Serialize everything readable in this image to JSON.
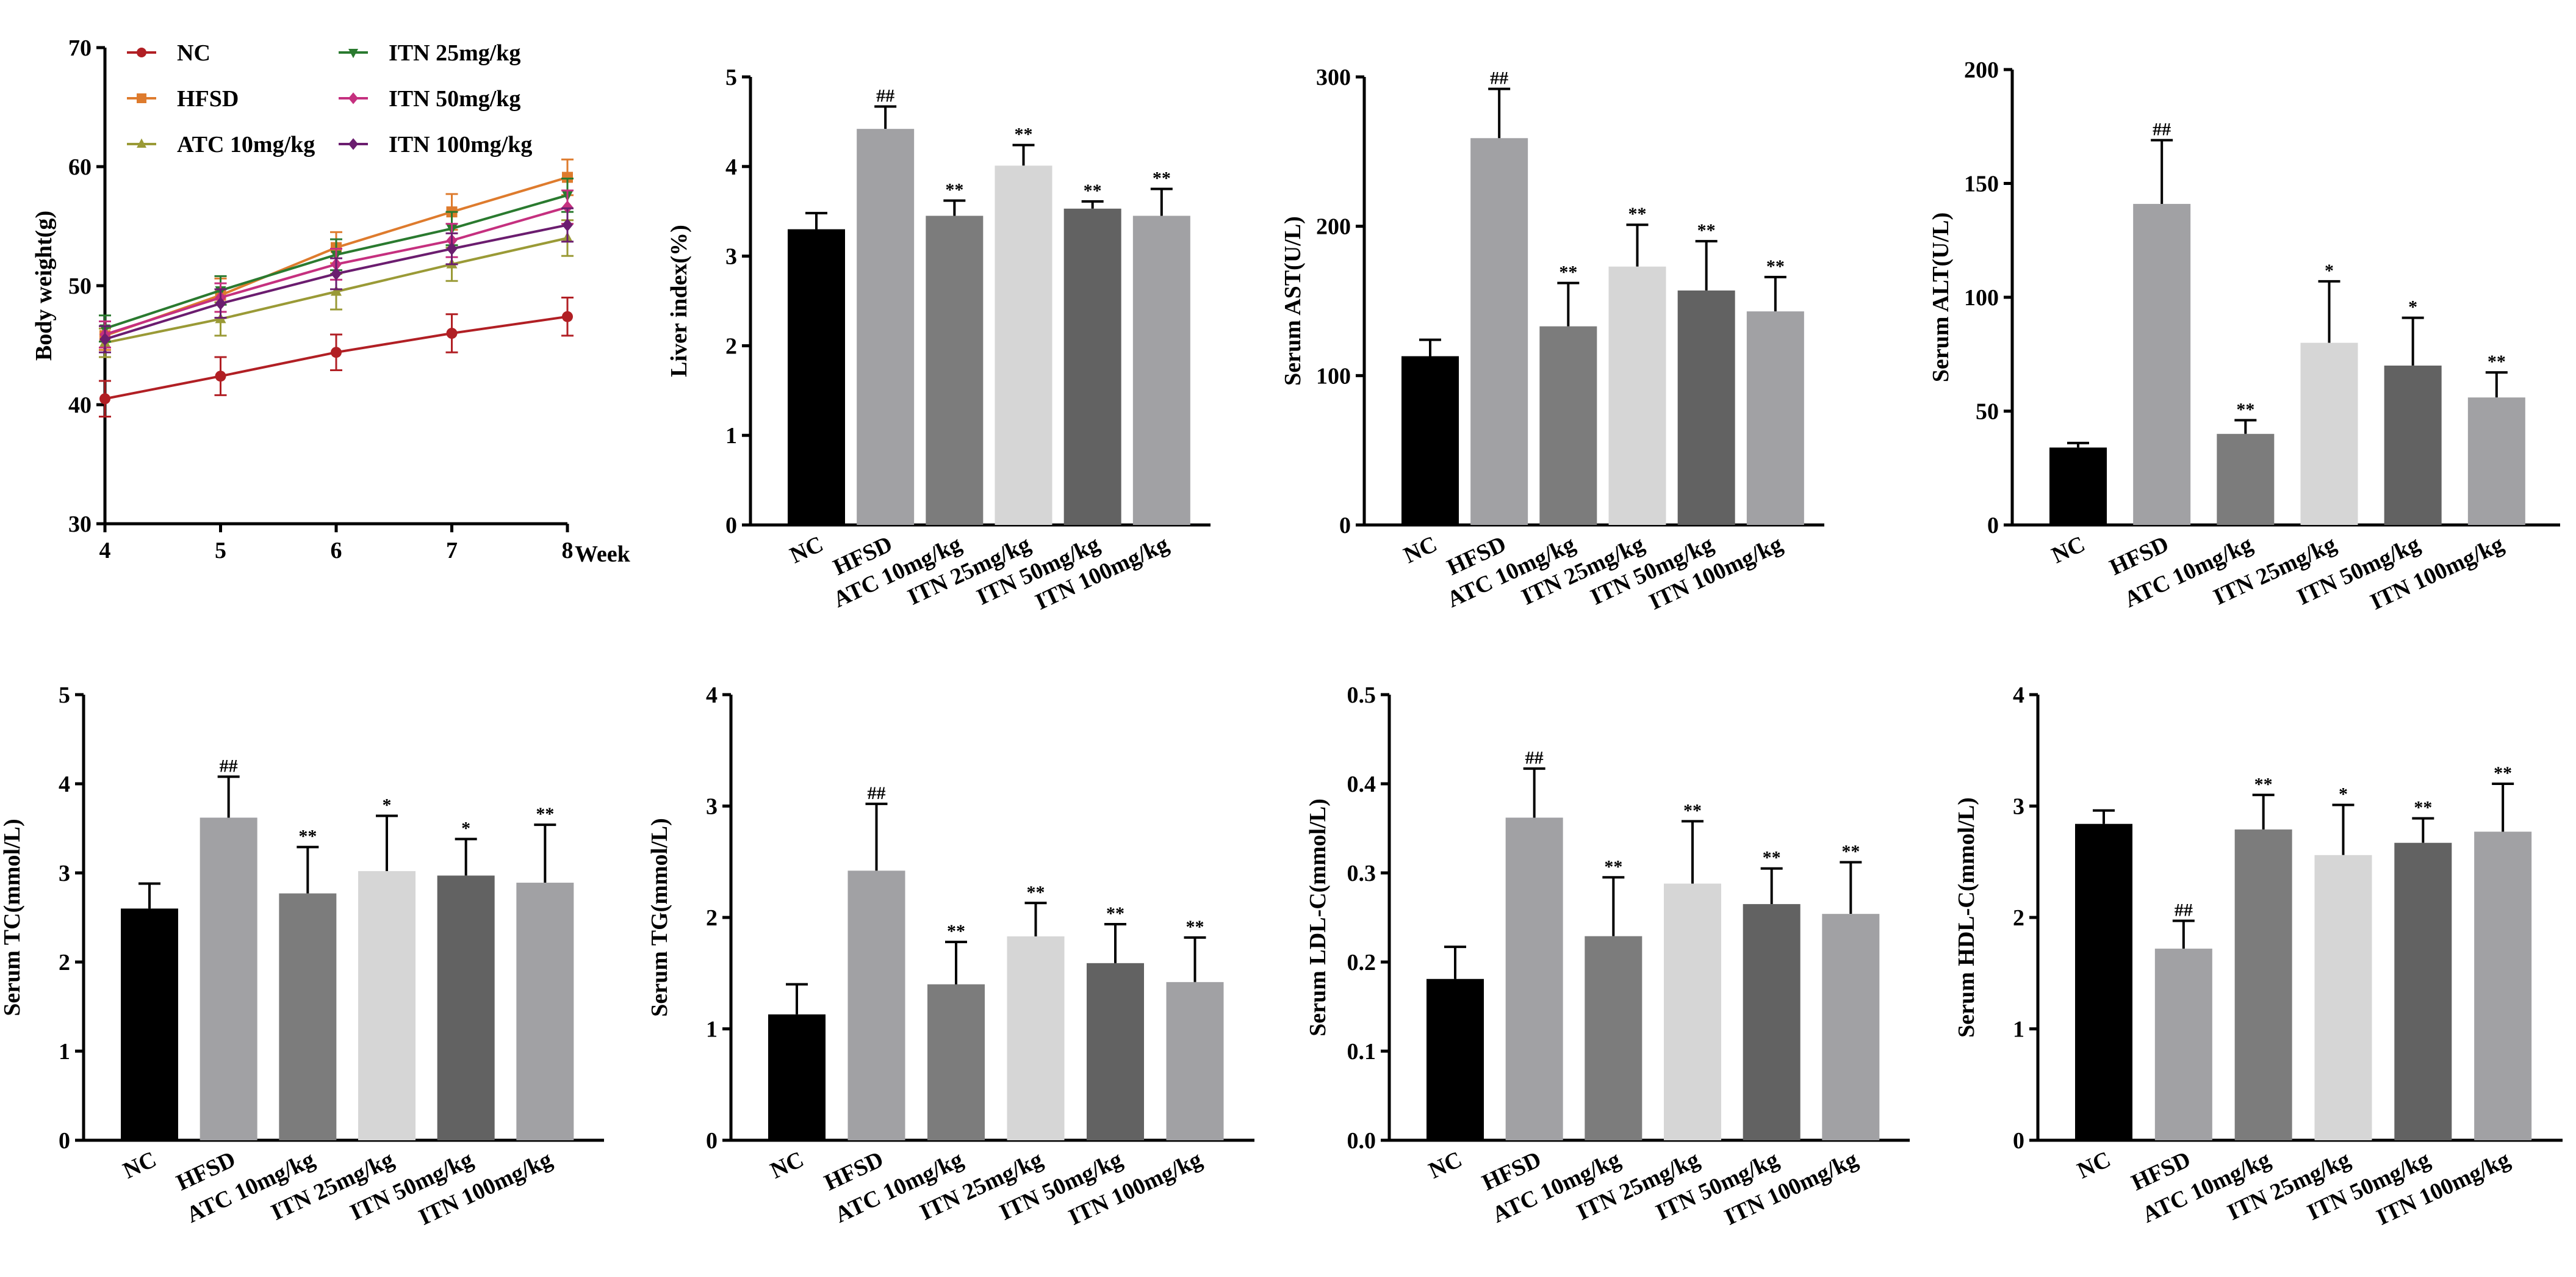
{
  "chart_data": [
    {
      "type": "line",
      "xlabel": "Week",
      "ylabel": "Body weight(g)",
      "x": [
        4,
        5,
        6,
        7,
        8
      ],
      "xlim": [
        4,
        8
      ],
      "ylim": [
        30,
        70
      ],
      "yticks": [
        30,
        40,
        50,
        60,
        70
      ],
      "legend_position": "top-left, two columns",
      "series": [
        {
          "name": "NC",
          "color": "#b11f24",
          "marker": "circle",
          "values": [
            40.5,
            42.4,
            44.4,
            46.0,
            47.4
          ],
          "errors": [
            1.5,
            1.6,
            1.5,
            1.6,
            1.6
          ]
        },
        {
          "name": "HFSD",
          "color": "#de7b2d",
          "marker": "square",
          "values": [
            45.8,
            49.2,
            53.2,
            56.2,
            59.1
          ],
          "errors": [
            1.2,
            1.4,
            1.3,
            1.5,
            1.5
          ]
        },
        {
          "name": "ATC 10mg/kg",
          "color": "#9a9a36",
          "marker": "triangle",
          "values": [
            45.2,
            47.2,
            49.5,
            51.8,
            54.0
          ],
          "errors": [
            1.2,
            1.4,
            1.5,
            1.4,
            1.5
          ]
        },
        {
          "name": "ITN 25mg/kg",
          "color": "#2a7a2f",
          "marker": "triangle-down",
          "values": [
            46.4,
            49.6,
            52.6,
            54.8,
            57.6
          ],
          "errors": [
            1.1,
            1.2,
            1.3,
            1.4,
            1.4
          ]
        },
        {
          "name": "ITN 50mg/kg",
          "color": "#c5307f",
          "marker": "diamond",
          "values": [
            45.9,
            49.0,
            51.8,
            53.8,
            56.6
          ],
          "errors": [
            1.1,
            1.2,
            1.3,
            1.4,
            1.4
          ]
        },
        {
          "name": "ITN 100mg/kg",
          "color": "#6b1d6f",
          "marker": "diamond",
          "values": [
            45.5,
            48.5,
            51.0,
            53.1,
            55.1
          ],
          "errors": [
            1.1,
            1.2,
            1.3,
            1.3,
            1.4
          ]
        }
      ]
    },
    {
      "type": "bar",
      "ylabel": "Liver index(%)",
      "categories": [
        "NC",
        "HFSD",
        "ATC 10mg/kg",
        "ITN 25mg/kg",
        "ITN 50mg/kg",
        "ITN 100mg/kg"
      ],
      "values": [
        3.3,
        4.42,
        3.45,
        4.01,
        3.53,
        3.45
      ],
      "errors": [
        0.18,
        0.25,
        0.17,
        0.23,
        0.08,
        0.3
      ],
      "significance": [
        "",
        "##",
        "**",
        "**",
        "**",
        "**"
      ],
      "ylim": [
        0,
        5
      ],
      "yticks": [
        "0",
        "1",
        "2",
        "3",
        "4",
        "5"
      ],
      "colors": [
        "#000000",
        "#a1a1a4",
        "#7c7c7c",
        "#d6d6d6",
        "#626262",
        "#a1a1a4"
      ]
    },
    {
      "type": "bar",
      "ylabel": "Serum AST(U/L)",
      "categories": [
        "NC",
        "HFSD",
        "ATC 10mg/kg",
        "ITN 25mg/kg",
        "ITN 50mg/kg",
        "ITN 100mg/kg"
      ],
      "values": [
        113,
        259,
        133,
        173,
        157,
        143
      ],
      "errors": [
        11,
        33,
        29,
        28,
        33,
        23
      ],
      "significance": [
        "",
        "##",
        "**",
        "**",
        "**",
        "**"
      ],
      "ylim": [
        0,
        300
      ],
      "yticks": [
        "0",
        "100",
        "200",
        "300"
      ],
      "colors": [
        "#000000",
        "#a1a1a4",
        "#7c7c7c",
        "#d6d6d6",
        "#626262",
        "#a1a1a4"
      ]
    },
    {
      "type": "bar",
      "ylabel": "Serum ALT(U/L)",
      "categories": [
        "NC",
        "HFSD",
        "ATC 10mg/kg",
        "ITN 25mg/kg",
        "ITN 50mg/kg",
        "ITN 100mg/kg"
      ],
      "values": [
        34,
        141,
        40,
        80,
        70,
        56
      ],
      "errors": [
        2,
        28,
        6,
        27,
        21,
        11
      ],
      "significance": [
        "",
        "##",
        "**",
        "*",
        "*",
        "**"
      ],
      "ylim": [
        0,
        200
      ],
      "yticks": [
        "0",
        "50",
        "100",
        "150",
        "200"
      ],
      "colors": [
        "#000000",
        "#a1a1a4",
        "#7c7c7c",
        "#d6d6d6",
        "#626262",
        "#a1a1a4"
      ]
    },
    {
      "type": "bar",
      "ylabel": "Serum TC(mmol/L)",
      "categories": [
        "NC",
        "HFSD",
        "ATC 10mg/kg",
        "ITN 25mg/kg",
        "ITN 50mg/kg",
        "ITN 100mg/kg"
      ],
      "values": [
        2.6,
        3.62,
        2.77,
        3.02,
        2.97,
        2.89
      ],
      "errors": [
        0.28,
        0.46,
        0.52,
        0.62,
        0.41,
        0.65
      ],
      "significance": [
        "",
        "##",
        "**",
        "*",
        "*",
        "**"
      ],
      "ylim": [
        0,
        5
      ],
      "yticks": [
        "0",
        "1",
        "2",
        "3",
        "4",
        "5"
      ],
      "colors": [
        "#000000",
        "#a1a1a4",
        "#7c7c7c",
        "#d6d6d6",
        "#626262",
        "#a1a1a4"
      ]
    },
    {
      "type": "bar",
      "ylabel": "Serum TG(mmol/L)",
      "categories": [
        "NC",
        "HFSD",
        "ATC 10mg/kg",
        "ITN 25mg/kg",
        "ITN 50mg/kg",
        "ITN 100mg/kg"
      ],
      "values": [
        1.13,
        2.42,
        1.4,
        1.83,
        1.59,
        1.42
      ],
      "errors": [
        0.27,
        0.6,
        0.38,
        0.3,
        0.35,
        0.4
      ],
      "significance": [
        "",
        "##",
        "**",
        "**",
        "**",
        "**"
      ],
      "ylim": [
        0,
        4
      ],
      "yticks": [
        "0",
        "1",
        "2",
        "3",
        "4"
      ],
      "colors": [
        "#000000",
        "#a1a1a4",
        "#7c7c7c",
        "#d6d6d6",
        "#626262",
        "#a1a1a4"
      ]
    },
    {
      "type": "bar",
      "ylabel": "Serum LDL-C(mmol/L)",
      "categories": [
        "NC",
        "HFSD",
        "ATC 10mg/kg",
        "ITN 25mg/kg",
        "ITN 50mg/kg",
        "ITN 100mg/kg"
      ],
      "values": [
        0.181,
        0.362,
        0.229,
        0.288,
        0.265,
        0.254
      ],
      "errors": [
        0.036,
        0.055,
        0.066,
        0.07,
        0.04,
        0.058
      ],
      "significance": [
        "",
        "##",
        "**",
        "**",
        "**",
        "**"
      ],
      "ylim": [
        0,
        0.5
      ],
      "yticks": [
        "0.0",
        "0.1",
        "0.2",
        "0.3",
        "0.4",
        "0.5"
      ],
      "colors": [
        "#000000",
        "#a1a1a4",
        "#7c7c7c",
        "#d6d6d6",
        "#626262",
        "#a1a1a4"
      ]
    },
    {
      "type": "bar",
      "ylabel": "Serum HDL-C(mmol/L)",
      "categories": [
        "NC",
        "HFSD",
        "ATC 10mg/kg",
        "ITN 25mg/kg",
        "ITN 50mg/kg",
        "ITN 100mg/kg"
      ],
      "values": [
        2.84,
        1.72,
        2.79,
        2.56,
        2.67,
        2.77
      ],
      "errors": [
        0.12,
        0.25,
        0.31,
        0.45,
        0.22,
        0.43
      ],
      "significance": [
        "",
        "##",
        "**",
        "*",
        "**",
        "**"
      ],
      "ylim": [
        0,
        4
      ],
      "yticks": [
        "0",
        "1",
        "2",
        "3",
        "4"
      ],
      "colors": [
        "#000000",
        "#a1a1a4",
        "#7c7c7c",
        "#d6d6d6",
        "#626262",
        "#a1a1a4"
      ]
    }
  ]
}
